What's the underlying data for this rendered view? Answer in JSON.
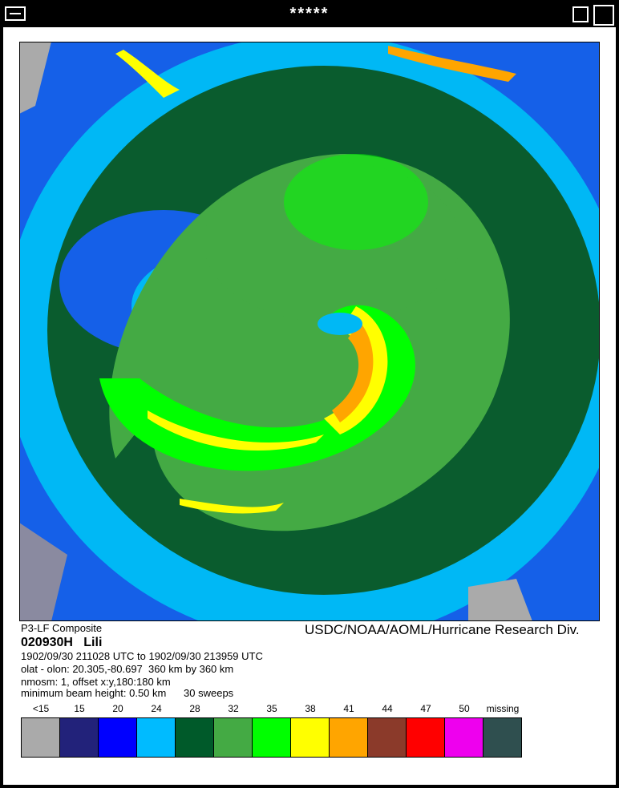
{
  "window": {
    "title": "*****"
  },
  "image": {
    "caption": "P3-LF Composite",
    "credit": "USDC/NOAA/AOML/Hurricane Research Div."
  },
  "info": {
    "heading": "020930H   Lili",
    "lines": [
      "1902/09/30 211028 UTC to 1902/09/30 213959 UTC",
      "olat - olon: 20.305,-80.697  360 km by 360 km",
      "nmosm: 1, offset x:y,180:180 km",
      "minimum beam height: 0.50 km      30 sweeps"
    ]
  },
  "legend": {
    "items": [
      {
        "label": "<15",
        "color": "#aaaaaa"
      },
      {
        "label": "15",
        "color": "#22227a"
      },
      {
        "label": "20",
        "color": "#0000ff"
      },
      {
        "label": "24",
        "color": "#00bbff"
      },
      {
        "label": "28",
        "color": "#005a2a"
      },
      {
        "label": "32",
        "color": "#44aa44"
      },
      {
        "label": "35",
        "color": "#00ff00"
      },
      {
        "label": "38",
        "color": "#ffff00"
      },
      {
        "label": "41",
        "color": "#ffa500"
      },
      {
        "label": "44",
        "color": "#8b3a2a"
      },
      {
        "label": "47",
        "color": "#ff0000"
      },
      {
        "label": "50",
        "color": "#ee00ee"
      },
      {
        "label": "missing",
        "color": "#2f4f4f"
      }
    ]
  }
}
